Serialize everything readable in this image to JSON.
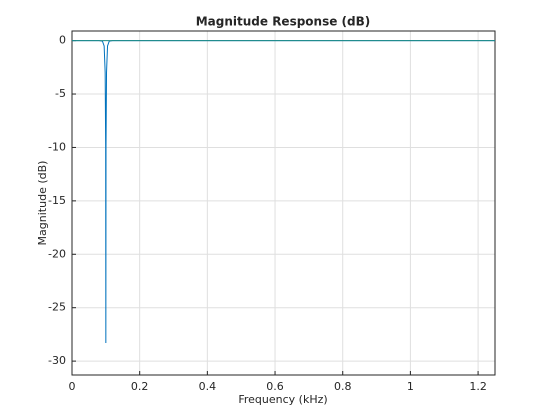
{
  "chart_data": {
    "type": "line",
    "title": "Magnitude Response (dB)",
    "x_label": "Frequency (kHz)",
    "y_label": "Magnitude (dB)",
    "series": [
      {
        "color": "#0072bd",
        "x": [
          0,
          0.08,
          0.09,
          0.095,
          0.098,
          0.0995,
          0.1,
          0.1005,
          0.102,
          0.105,
          0.11,
          0.12,
          1.25
        ],
        "values": [
          0,
          0,
          -0.05,
          -0.5,
          -3,
          -10,
          -28.3,
          -10,
          -3,
          -0.5,
          -0.05,
          0,
          0
        ]
      },
      {
        "color": "#1e8c86",
        "x": [
          0,
          0.09,
          0.1,
          0.11,
          1.25
        ],
        "values": [
          0,
          0,
          0,
          0,
          0
        ]
      }
    ],
    "xlim": [
      0,
      1.25
    ],
    "xticks": [
      0,
      0.2,
      0.4,
      0.6,
      0.8,
      1,
      1.2
    ],
    "ylim": [
      -31.3,
      0.9
    ],
    "yticks": [
      0,
      -5,
      -10,
      -15,
      -20,
      -25,
      -30
    ],
    "grid": true
  }
}
